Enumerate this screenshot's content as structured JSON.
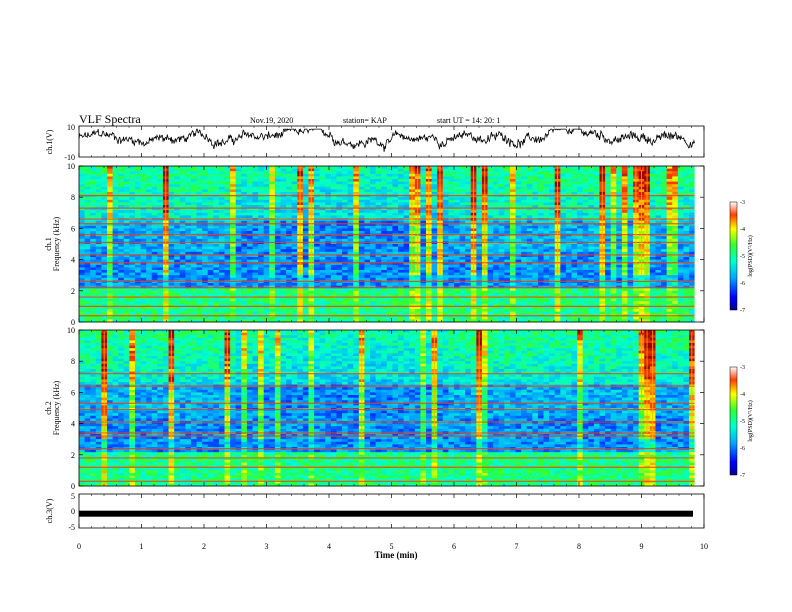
{
  "header": {
    "title": "VLF Spectra",
    "date": "Nov.19, 2020",
    "station": "station= KAP",
    "start": "start  UT =   14: 20: 1"
  },
  "colorbar_label": "log(PSD)(V²/Hz)",
  "chart_data": [
    {
      "type": "line",
      "name": "ch1-waveform",
      "ylabel": "ch.1(V)",
      "ylim": [
        -10,
        10
      ],
      "yticks": [
        "10",
        "-10"
      ],
      "xlim": [
        0,
        10
      ],
      "approx_end_time_min": 9.85,
      "description": "dense noisy waveform, roughly centred near +2 V with fluctuations of several volts"
    },
    {
      "type": "heatmap",
      "name": "ch1-spectrogram",
      "ylabel_lines": [
        "ch.1",
        "Frequency  (kHz)"
      ],
      "ylim": [
        0,
        10
      ],
      "yticks": [
        "0",
        "2",
        "4",
        "6",
        "8",
        "10"
      ],
      "xlim": [
        0,
        10
      ],
      "colorbar": {
        "ticks": [
          "-3",
          "-4",
          "-5",
          "-6",
          "-7"
        ],
        "range": [
          -7,
          -3
        ]
      },
      "strong_lines_khz": [
        0.4,
        1.0,
        1.6,
        2.2,
        2.6,
        3.8,
        4.3,
        5.1,
        5.6,
        6.3,
        6.6,
        7.3,
        8.1
      ]
    },
    {
      "type": "heatmap",
      "name": "ch2-spectrogram",
      "ylabel_lines": [
        "ch.2",
        "Frequency  (kHz)"
      ],
      "ylim": [
        0,
        10
      ],
      "yticks": [
        "0",
        "2",
        "4",
        "6",
        "8",
        "10"
      ],
      "xlim": [
        0,
        10
      ],
      "colorbar": {
        "ticks": [
          "-3",
          "-4",
          "-5",
          "-6",
          "-7"
        ],
        "range": [
          -7,
          -3
        ]
      },
      "strong_lines_khz": [
        0.3,
        1.2,
        1.8,
        2.4,
        3.2,
        3.4,
        4.1,
        4.9,
        5.3,
        6.4,
        7.2
      ]
    },
    {
      "type": "line",
      "name": "ch3-signal",
      "ylabel": "ch.3(V)",
      "ylim": [
        -5,
        5
      ],
      "yticks": [
        "5",
        "0",
        "-5"
      ],
      "xlim": [
        0,
        10
      ],
      "approx_level_v": -0.8
    }
  ],
  "xaxis": {
    "label": "Time  (min)",
    "ticks": [
      "0",
      "1",
      "2",
      "3",
      "4",
      "5",
      "6",
      "7",
      "8",
      "9",
      "10"
    ]
  }
}
